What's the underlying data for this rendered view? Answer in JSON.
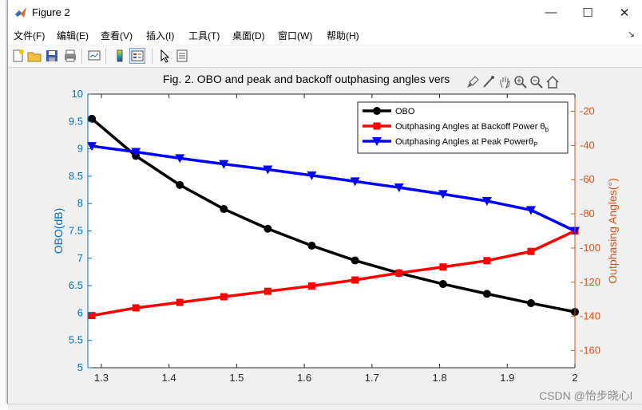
{
  "window": {
    "title": "Figure 2",
    "controls": {
      "minimize": "—",
      "maximize": "☐",
      "close": "✕"
    }
  },
  "menubar": {
    "items": [
      "文件(F)",
      "编辑(E)",
      "查看(V)",
      "插入(I)",
      "工具(T)",
      "桌面(D)",
      "窗口(W)",
      "帮助(H)"
    ],
    "overflow": "↘"
  },
  "toolbar": {
    "icons": [
      "new-figure-icon",
      "open-file-icon",
      "save-icon",
      "print-icon",
      "link-plot-icon",
      "insert-colorbar-icon",
      "insert-legend-icon",
      "edit-plot-arrow-icon",
      "property-inspector-icon"
    ]
  },
  "axes_toolbar": {
    "icons": [
      "brush-icon",
      "data-tips-icon",
      "pan-icon",
      "zoom-in-icon",
      "zoom-out-icon",
      "home-icon"
    ]
  },
  "watermark": "CSDN @怡步晓心l",
  "chart_data": {
    "type": "line",
    "title": "Fig. 2. OBO and peak and backoff outphasing angles vers",
    "xlabel": "",
    "ylabel_left": "OBO(dB)",
    "ylabel_right": "Outphasing Angles(°)",
    "xlim": [
      1.28,
      2.0
    ],
    "ylim_left": [
      5,
      10
    ],
    "ylim_right": [
      -170,
      -10
    ],
    "x_ticks": [
      "1.3",
      "1.4",
      "1.5",
      "1.6",
      "1.7",
      "1.8",
      "1.9",
      "2"
    ],
    "y_left_ticks": [
      "5",
      "5.5",
      "6",
      "6.5",
      "7",
      "7.5",
      "8",
      "8.5",
      "9",
      "9.5",
      "10"
    ],
    "y_right_ticks": [
      "-160",
      "-140",
      "-120",
      "-100",
      "-80",
      "-60",
      "-40",
      "-20"
    ],
    "x": [
      1.286,
      1.351,
      1.416,
      1.481,
      1.546,
      1.611,
      1.675,
      1.74,
      1.805,
      1.87,
      1.935,
      2.0
    ],
    "series": [
      {
        "name": "OBO",
        "axis": "left",
        "marker": "circle",
        "color": "#000000",
        "values": [
          9.55,
          8.87,
          8.34,
          7.9,
          7.54,
          7.23,
          6.96,
          6.73,
          6.53,
          6.35,
          6.18,
          6.02
        ]
      },
      {
        "name": "Outphasing Angles at Backoff Power θb",
        "axis": "right",
        "marker": "square",
        "color": "#ff0000",
        "values": [
          -139.5,
          -135.0,
          -131.8,
          -128.5,
          -125.3,
          -122.2,
          -118.7,
          -114.6,
          -111.1,
          -107.4,
          -102.0,
          -90.0
        ]
      },
      {
        "name": "Outphasing Angles at Peak Powerθp",
        "axis": "right",
        "marker": "triangle-down",
        "color": "#0000ff",
        "values": [
          -40.4,
          -43.8,
          -47.5,
          -50.9,
          -54.1,
          -57.5,
          -61.0,
          -64.6,
          -68.5,
          -72.5,
          -77.8,
          -90.0
        ]
      }
    ],
    "legend": {
      "placement": "top-right",
      "entries": [
        "OBO",
        "Outphasing Angles at Backoff Power θ",
        "Outphasing Angles at Peak Powerθ"
      ],
      "subscripts": [
        "",
        "b",
        "P"
      ]
    },
    "grid": false,
    "colors": {
      "left_axis": "#0072bd",
      "right_axis": "#d95319"
    }
  }
}
